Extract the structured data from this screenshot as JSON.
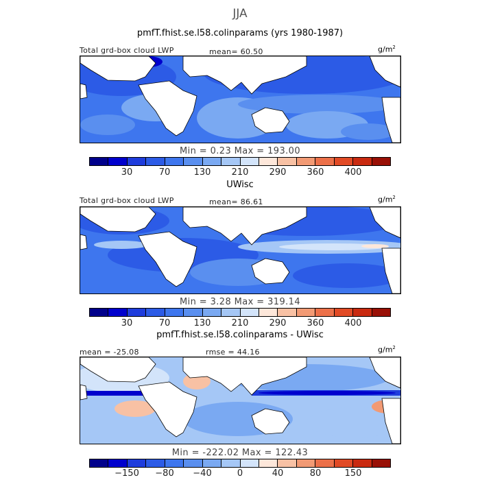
{
  "season": "JJA",
  "panels": [
    {
      "title": "pmfT.fhist.se.l58.colinparams (yrs 1980-1987)",
      "left_label": "Total grd-box cloud LWP",
      "center_label": "mean=  60.50",
      "units_base": "g/m",
      "units_exp": "2",
      "minmax": "Min =    0.23 Max = 193.00",
      "colorbar_ticks": [
        "30",
        "70",
        "130",
        "210",
        "290",
        "360",
        "400"
      ],
      "field": "model"
    },
    {
      "title": "UWisc",
      "left_label": "Total grd-box cloud LWP",
      "center_label": "mean=  86.61",
      "units_base": "g/m",
      "units_exp": "2",
      "minmax": "Min =    3.28 Max = 319.14",
      "colorbar_ticks": [
        "30",
        "70",
        "130",
        "210",
        "290",
        "360",
        "400"
      ],
      "field": "obs"
    },
    {
      "title": "pmfT.fhist.se.l58.colinparams - UWisc",
      "left_label": "mean = -25.08",
      "center_label": "rmse =  44.16",
      "units_base": "g/m",
      "units_exp": "2",
      "minmax": "Min = -222.02 Max = 122.43",
      "colorbar_ticks": [
        "−150",
        "−80",
        "−40",
        "0",
        "40",
        "80",
        "150"
      ],
      "field": "diff"
    }
  ],
  "chart_data": [
    {
      "type": "heatmap",
      "title": "pmfT.fhist.se.l58.colinparams (yrs 1980-1987)",
      "variable": "Total grd-box cloud LWP",
      "units": "g/m2",
      "mean": 60.5,
      "min": 0.23,
      "max": 193.0,
      "contour_levels": [
        10,
        30,
        50,
        70,
        100,
        130,
        170,
        210,
        250,
        290,
        330,
        360,
        380,
        400,
        430
      ],
      "colorbar_labels": [
        30,
        70,
        130,
        210,
        290,
        360,
        400
      ],
      "colors": [
        "#00008b",
        "#0000cd",
        "#1e3cdc",
        "#2c5be6",
        "#3e76ee",
        "#5a8fef",
        "#7aa9f2",
        "#a5c7f6",
        "#d3e4fa",
        "#fde7da",
        "#f8c1a4",
        "#f29a74",
        "#ec7049",
        "#e14a25",
        "#c92a10",
        "#991006"
      ]
    },
    {
      "type": "heatmap",
      "title": "UWisc",
      "variable": "Total grd-box cloud LWP",
      "units": "g/m2",
      "mean": 86.61,
      "min": 3.28,
      "max": 319.14,
      "contour_levels": [
        10,
        30,
        50,
        70,
        100,
        130,
        170,
        210,
        250,
        290,
        330,
        360,
        380,
        400,
        430
      ],
      "colorbar_labels": [
        30,
        70,
        130,
        210,
        290,
        360,
        400
      ],
      "colors": [
        "#00008b",
        "#0000cd",
        "#1e3cdc",
        "#2c5be6",
        "#3e76ee",
        "#5a8fef",
        "#7aa9f2",
        "#a5c7f6",
        "#d3e4fa",
        "#fde7da",
        "#f8c1a4",
        "#f29a74",
        "#ec7049",
        "#e14a25",
        "#c92a10",
        "#991006"
      ]
    },
    {
      "type": "heatmap",
      "title": "pmfT.fhist.se.l58.colinparams - UWisc",
      "variable": "difference",
      "units": "g/m2",
      "mean": -25.08,
      "rmse": 44.16,
      "min": -222.02,
      "max": 122.43,
      "contour_levels": [
        -200,
        -150,
        -120,
        -80,
        -60,
        -40,
        -20,
        0,
        20,
        40,
        60,
        80,
        120,
        150,
        200
      ],
      "colorbar_labels": [
        -150,
        -80,
        -40,
        0,
        40,
        80,
        150
      ],
      "colors": [
        "#00008b",
        "#0000cd",
        "#1e3cdc",
        "#2c5be6",
        "#3e76ee",
        "#5a8fef",
        "#7aa9f2",
        "#a5c7f6",
        "#d3e4fa",
        "#fde7da",
        "#f8c1a4",
        "#f29a74",
        "#ec7049",
        "#e14a25",
        "#c92a10",
        "#991006"
      ]
    }
  ]
}
